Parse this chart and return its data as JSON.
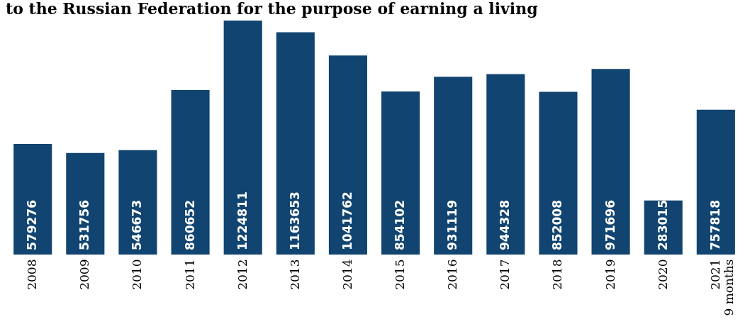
{
  "chart_data": {
    "type": "bar",
    "title": "to the Russian Federation for the purpose of earning a living",
    "categories": [
      "2008",
      "2009",
      "2010",
      "2011",
      "2012",
      "2013",
      "2014",
      "2015",
      "2016",
      "2017",
      "2018",
      "2019",
      "2020",
      "2021\n9 months"
    ],
    "values": [
      579276,
      531756,
      546673,
      860652,
      1224811,
      1163653,
      1041762,
      854102,
      931119,
      944328,
      852008,
      971696,
      283015,
      757818
    ],
    "color": "#114470",
    "data_labels": true
  }
}
